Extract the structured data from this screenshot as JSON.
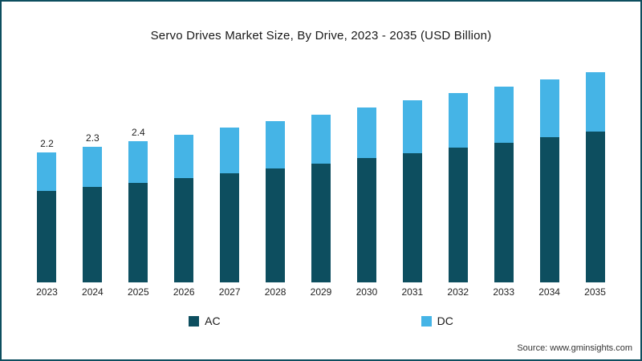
{
  "title": "Servo Drives Market Size, By Drive, 2023 - 2035 (USD Billion)",
  "source": "Source: www.gminsights.com",
  "colors": {
    "ac": "#0d4e5f",
    "dc": "#45b4e6",
    "border": "#0d4e5f"
  },
  "legend": [
    {
      "label": "AC",
      "color": "#0d4e5f"
    },
    {
      "label": "DC",
      "color": "#45b4e6"
    }
  ],
  "chart_data": {
    "type": "bar",
    "stacked": true,
    "title": "Servo Drives Market Size, By Drive, 2023 - 2035 (USD Billion)",
    "xlabel": "",
    "ylabel": "USD Billion",
    "grid": false,
    "legend_position": "bottom",
    "categories": [
      "2023",
      "2024",
      "2025",
      "2026",
      "2027",
      "2028",
      "2029",
      "2030",
      "2031",
      "2032",
      "2033",
      "2034",
      "2035"
    ],
    "series": [
      {
        "name": "AC",
        "color": "#0d4e5f",
        "values": [
          1.55,
          1.62,
          1.69,
          1.77,
          1.85,
          1.93,
          2.01,
          2.1,
          2.19,
          2.28,
          2.37,
          2.46,
          2.55
        ]
      },
      {
        "name": "DC",
        "color": "#45b4e6",
        "values": [
          0.65,
          0.68,
          0.71,
          0.74,
          0.77,
          0.8,
          0.83,
          0.86,
          0.89,
          0.92,
          0.95,
          0.98,
          1.01
        ]
      }
    ],
    "totals": [
      2.2,
      2.3,
      2.4,
      2.51,
      2.62,
      2.73,
      2.84,
      2.96,
      3.08,
      3.2,
      3.32,
      3.44,
      3.56
    ],
    "data_labels": [
      "2.2",
      "2.3",
      "2.4",
      "",
      "",
      "",
      "",
      "",
      "",
      "",
      "",
      "",
      ""
    ],
    "ylim": [
      0,
      3.7
    ]
  }
}
